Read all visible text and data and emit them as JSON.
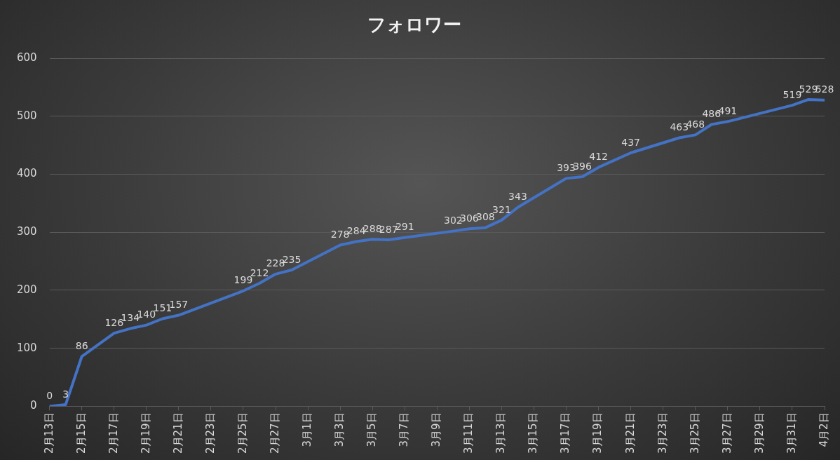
{
  "chart_data": {
    "type": "line",
    "title": "フォロワー",
    "x": [
      "--02-13",
      "--02-14",
      "--02-15",
      "--02-17",
      "--02-18",
      "--02-19",
      "--02-20",
      "--02-21",
      "--02-25",
      "--02-26",
      "--02-27",
      "--02-28",
      "--03-03",
      "--03-04",
      "--03-05",
      "--03-06",
      "--03-07",
      "--03-10",
      "--03-11",
      "--03-12",
      "--03-13",
      "--03-14",
      "--03-17",
      "--03-18",
      "--03-19",
      "--03-21",
      "--03-24",
      "--03-25",
      "--03-26",
      "--03-27",
      "--03-31",
      "--04-01",
      "--04-02"
    ],
    "series": [
      {
        "color": "#4472c4",
        "values": [
          0,
          3,
          86,
          126,
          134,
          140,
          151,
          157,
          199,
          212,
          228,
          235,
          278,
          284,
          288,
          287,
          291,
          302,
          306,
          308,
          321,
          343,
          393,
          396,
          412,
          437,
          463,
          468,
          486,
          491,
          519,
          529,
          528
        ]
      }
    ],
    "xlim": [
      "--02-13",
      "--04-02"
    ],
    "xticks": [
      {
        "value": "--02-13",
        "label": "2月13日"
      },
      {
        "value": "--02-15",
        "label": "2月15日"
      },
      {
        "value": "--02-17",
        "label": "2月17日"
      },
      {
        "value": "--02-19",
        "label": "2月19日"
      },
      {
        "value": "--02-21",
        "label": "2月21日"
      },
      {
        "value": "--02-23",
        "label": "2月23日"
      },
      {
        "value": "--02-25",
        "label": "2月25日"
      },
      {
        "value": "--02-27",
        "label": "2月27日"
      },
      {
        "value": "--03-01",
        "label": "3月1日"
      },
      {
        "value": "--03-03",
        "label": "3月3日"
      },
      {
        "value": "--03-05",
        "label": "3月5日"
      },
      {
        "value": "--03-07",
        "label": "3月7日"
      },
      {
        "value": "--03-09",
        "label": "3月9日"
      },
      {
        "value": "--03-11",
        "label": "3月11日"
      },
      {
        "value": "--03-13",
        "label": "3月13日"
      },
      {
        "value": "--03-15",
        "label": "3月15日"
      },
      {
        "value": "--03-17",
        "label": "3月17日"
      },
      {
        "value": "--03-19",
        "label": "3月19日"
      },
      {
        "value": "--03-21",
        "label": "3月21日"
      },
      {
        "value": "--03-23",
        "label": "3月23日"
      },
      {
        "value": "--03-25",
        "label": "3月25日"
      },
      {
        "value": "--03-27",
        "label": "3月27日"
      },
      {
        "value": "--03-29",
        "label": "3月29日"
      },
      {
        "value": "--03-31",
        "label": "3月31日"
      },
      {
        "value": "--04-02",
        "label": "4月2日"
      }
    ],
    "ylim": [
      0,
      600
    ],
    "yticks": [
      0,
      100,
      200,
      300,
      400,
      500,
      600
    ],
    "grid": "y",
    "legend": false,
    "marker": "none",
    "line_style": "solid",
    "data_labels": true
  }
}
